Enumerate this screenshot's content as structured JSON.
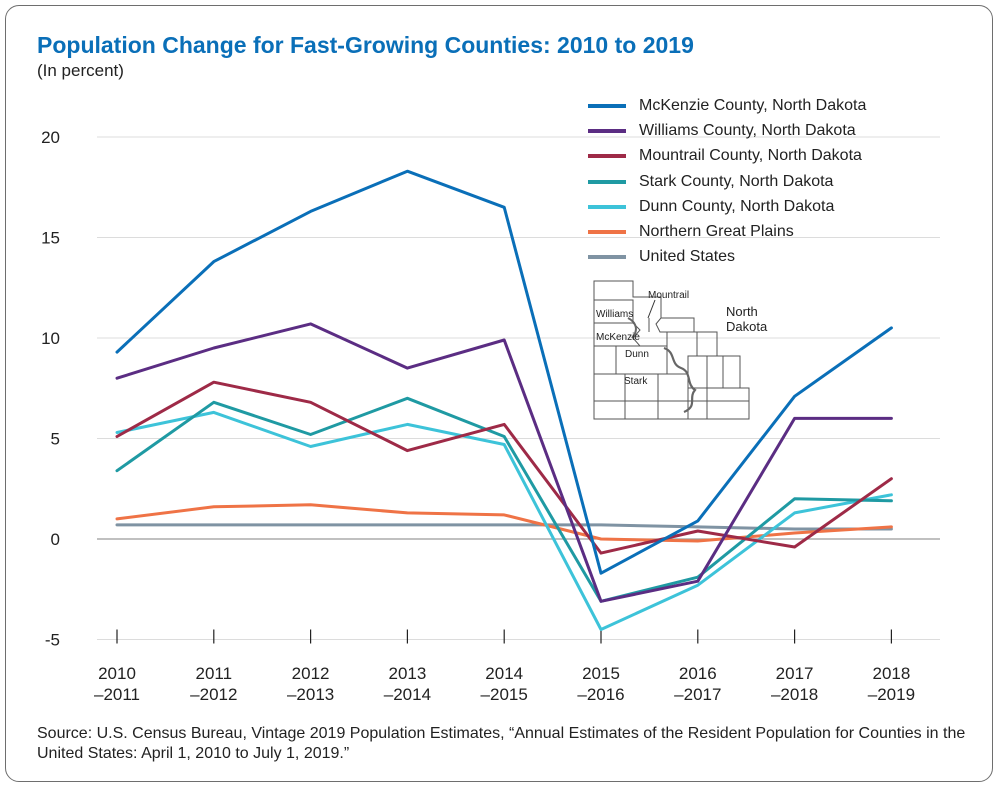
{
  "title": "Population Change for Fast-Growing Counties: 2010 to 2019",
  "subtitle": "(In percent)",
  "source": "Source: U.S. Census Bureau, Vintage 2019 Population Estimates, “Annual Estimates of the Resident Population for Counties in the United States: April 1, 2010 to July 1, 2019.”",
  "chart_data": {
    "type": "line",
    "title": "Population Change for Fast-Growing Counties: 2010 to 2019",
    "subtitle": "(In percent)",
    "x": [
      [
        "2010",
        "–2011"
      ],
      [
        "2011",
        "–2012"
      ],
      [
        "2012",
        "–2013"
      ],
      [
        "2013",
        "–2014"
      ],
      [
        "2014",
        "–2015"
      ],
      [
        "2015",
        "–2016"
      ],
      [
        "2016",
        "–2017"
      ],
      [
        "2017",
        "–2018"
      ],
      [
        "2018",
        "–2019"
      ]
    ],
    "ylim": [
      -5,
      20
    ],
    "yticks": [
      -5,
      0,
      5,
      10,
      15,
      20
    ],
    "grid": true,
    "legend_position": "top-right",
    "series": [
      {
        "name": "McKenzie County, North Dakota",
        "color": "#0a6fb8",
        "values": [
          9.3,
          13.8,
          16.3,
          18.3,
          16.5,
          -1.7,
          0.9,
          7.1,
          10.5
        ]
      },
      {
        "name": "Williams County, North Dakota",
        "color": "#5b2d83",
        "values": [
          8.0,
          9.5,
          10.7,
          8.5,
          9.9,
          -3.1,
          -2.1,
          6.0,
          6.0
        ]
      },
      {
        "name": "Mountrail County, North Dakota",
        "color": "#9e2a47",
        "values": [
          5.1,
          7.8,
          6.8,
          4.4,
          5.7,
          -0.7,
          0.4,
          -0.4,
          3.0
        ]
      },
      {
        "name": "Stark County, North Dakota",
        "color": "#1f9aa3",
        "values": [
          3.4,
          6.8,
          5.2,
          7.0,
          5.1,
          -3.1,
          -1.9,
          2.0,
          1.9
        ]
      },
      {
        "name": "Dunn County, North Dakota",
        "color": "#3dc3d9",
        "values": [
          5.3,
          6.3,
          4.6,
          5.7,
          4.7,
          -4.5,
          -2.3,
          1.3,
          2.2
        ]
      },
      {
        "name": "Northern Great Plains",
        "color": "#ef7346",
        "values": [
          1.0,
          1.6,
          1.7,
          1.3,
          1.2,
          0.0,
          -0.1,
          0.3,
          0.6
        ]
      },
      {
        "name": "United States",
        "color": "#7f93a3",
        "values": [
          0.7,
          0.7,
          0.7,
          0.7,
          0.7,
          0.7,
          0.6,
          0.5,
          0.5
        ]
      }
    ]
  },
  "map_inset": {
    "labels": [
      "Mountrail",
      "Williams",
      "McKenzie",
      "Dunn",
      "Stark"
    ],
    "state_label": [
      "North",
      "Dakota"
    ]
  }
}
